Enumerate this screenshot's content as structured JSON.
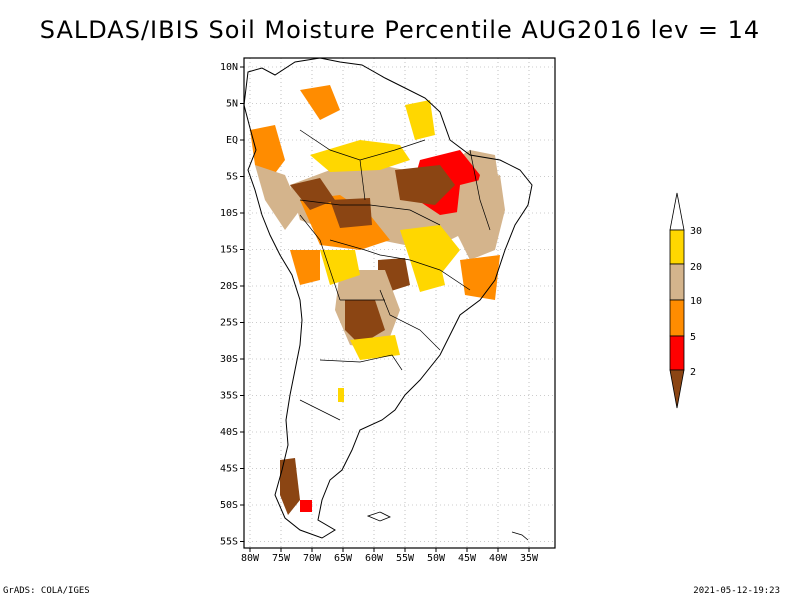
{
  "title": "SALDAS/IBIS Soil Moisture Percentile AUG2016 lev = 14",
  "footer": {
    "left": "GrADS: COLA/IGES",
    "right": "2021-05-12-19:23"
  },
  "axes": {
    "lat_labels": [
      "10N",
      "5N",
      "EQ",
      "5S",
      "10S",
      "15S",
      "20S",
      "25S",
      "30S",
      "35S",
      "40S",
      "45S",
      "50S",
      "55S"
    ],
    "lon_labels": [
      "80W",
      "75W",
      "70W",
      "65W",
      "60W",
      "55W",
      "50W",
      "45W",
      "40W",
      "35W"
    ]
  },
  "legend": {
    "labels": [
      "30",
      "20",
      "10",
      "5",
      "2"
    ],
    "colors": {
      "above30": "#ffffff",
      "c20_30": "#ffd700",
      "c10_20": "#d4b48c",
      "c5_10": "#ff8c00",
      "c2_5": "#ff0000",
      "below2": "#8b4513"
    }
  }
}
